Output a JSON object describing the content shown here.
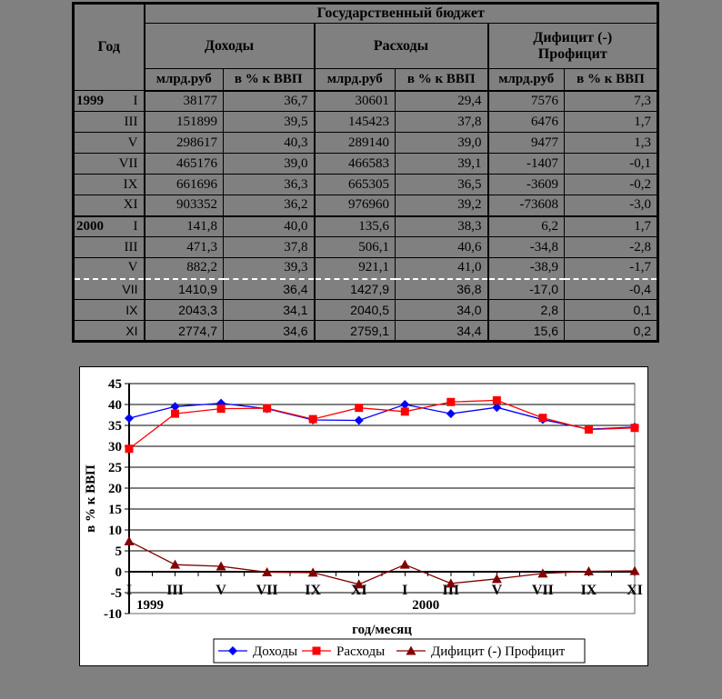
{
  "table": {
    "title": "Государственный бюджет",
    "year_header": "Год",
    "groups": [
      {
        "label": "Доходы"
      },
      {
        "label": "Расходы"
      },
      {
        "label_line1": "Дифицит (-)",
        "label_line2": "Профицит"
      }
    ],
    "subheaders": [
      "млрд.руб",
      "в % к ВВП",
      "млрд.руб",
      "в % к ВВП",
      "млрд.руб",
      "в % к ВВП"
    ],
    "rows": [
      {
        "year": "1999",
        "month": "I",
        "values": [
          "38177",
          "36,7",
          "30601",
          "29,4",
          "7576",
          "7,3"
        ]
      },
      {
        "year": "",
        "month": "III",
        "values": [
          "151899",
          "39,5",
          "145423",
          "37,8",
          "6476",
          "1,7"
        ]
      },
      {
        "year": "",
        "month": "V",
        "values": [
          "298617",
          "40,3",
          "289140",
          "39,0",
          "9477",
          "1,3"
        ]
      },
      {
        "year": "",
        "month": "VII",
        "values": [
          "465176",
          "39,0",
          "466583",
          "39,1",
          "-1407",
          "-0,1"
        ]
      },
      {
        "year": "",
        "month": "IX",
        "values": [
          "661696",
          "36,3",
          "665305",
          "36,5",
          "-3609",
          "-0,2"
        ]
      },
      {
        "year": "",
        "month": "XI",
        "values": [
          "903352",
          "36,2",
          "976960",
          "39,2",
          "-73608",
          "-3,0"
        ]
      },
      {
        "year": "2000",
        "month": "I",
        "yearstart": true,
        "values": [
          "141,8",
          "40,0",
          "135,6",
          "38,3",
          "6,2",
          "1,7"
        ]
      },
      {
        "year": "",
        "month": "III",
        "values": [
          "471,3",
          "37,8",
          "506,1",
          "40,6",
          "-34,8",
          "-2,8"
        ]
      },
      {
        "year": "",
        "month": "V",
        "values": [
          "882,2",
          "39,3",
          "921,1",
          "41,0",
          "-38,9",
          "-1,7"
        ]
      },
      {
        "year": "",
        "month": "VII",
        "sans": true,
        "pagebreak": true,
        "values": [
          "1410,9",
          "36,4",
          "1427,9",
          "36,8",
          "-17,0",
          "-0,4"
        ]
      },
      {
        "year": "",
        "month": "IX",
        "sans": true,
        "values": [
          "2043,3",
          "34,1",
          "2040,5",
          "34,0",
          "2,8",
          "0,1"
        ]
      },
      {
        "year": "",
        "month": "XI",
        "sans": true,
        "values": [
          "2774,7",
          "34,6",
          "2759,1",
          "34,4",
          "15,6",
          "0,2"
        ]
      }
    ]
  },
  "chart_data": {
    "type": "line",
    "title": "",
    "xlabel": "год/месяц",
    "ylabel": "в % к ВВП",
    "ylim": [
      -10,
      45
    ],
    "ytick_step": 5,
    "grid": true,
    "legend_position": "bottom",
    "categories": [
      "I",
      "III",
      "V",
      "VII",
      "IX",
      "XI",
      "I",
      "III",
      "V",
      "VII",
      "IX",
      "XI"
    ],
    "year_labels": [
      {
        "text": "1999",
        "at_index": 0
      },
      {
        "text": "2000",
        "at_index": 6
      }
    ],
    "series": [
      {
        "name": "Доходы",
        "color": "#0000ff",
        "marker": "diamond",
        "values": [
          36.7,
          39.5,
          40.3,
          39.0,
          36.3,
          36.2,
          40.0,
          37.8,
          39.3,
          36.4,
          34.1,
          34.6
        ]
      },
      {
        "name": "Расходы",
        "color": "#ff0000",
        "marker": "square",
        "values": [
          29.4,
          37.8,
          39.0,
          39.1,
          36.5,
          39.2,
          38.3,
          40.6,
          41.0,
          36.8,
          34.0,
          34.4
        ]
      },
      {
        "name": "Дифицит (-) Профицит",
        "color": "#800000",
        "marker": "triangle",
        "values": [
          7.3,
          1.7,
          1.3,
          -0.1,
          -0.2,
          -3.0,
          1.7,
          -2.8,
          -1.7,
          -0.4,
          0.1,
          0.2
        ]
      }
    ]
  },
  "colors": {
    "background": "#808080",
    "chart_bg": "#ffffff",
    "gridline": "#000000",
    "plot_border": "#666666"
  }
}
